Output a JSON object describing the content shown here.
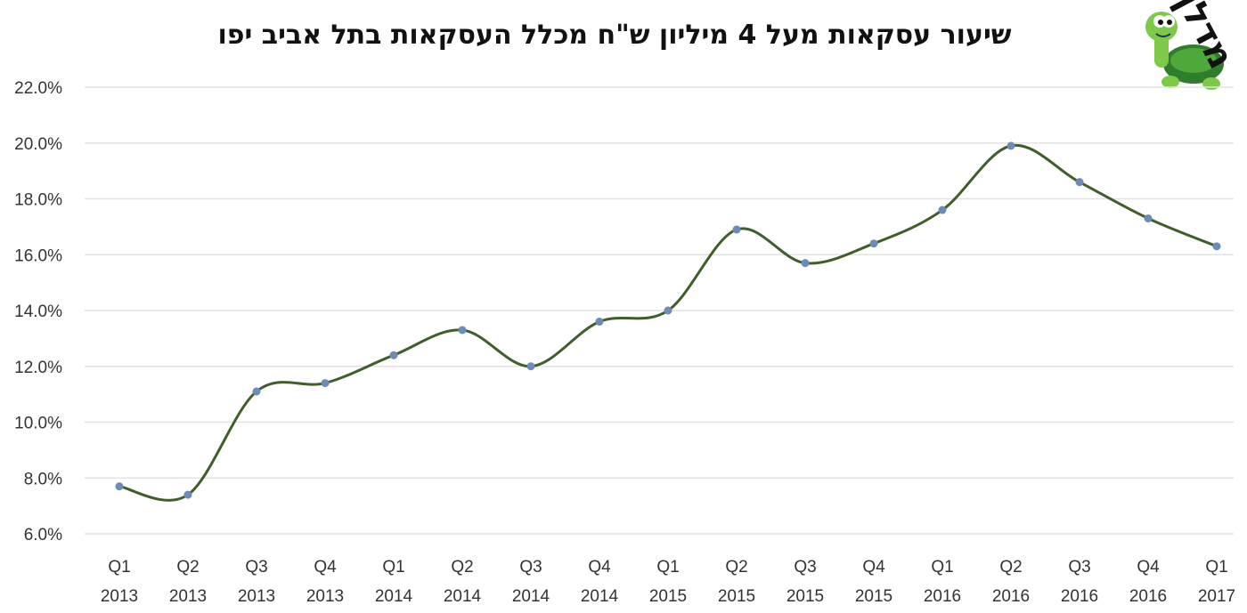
{
  "title": "שיעור עסקאות מעל 4 מיליון ש\"ח מכלל העסקאות בתל אביב יפו",
  "logo": {
    "text": "מדלן",
    "icon": "turtle-icon"
  },
  "chart_data": {
    "type": "line",
    "title": "שיעור עסקאות מעל 4 מיליון ש\"ח מכלל העסקאות בתל אביב יפו",
    "xlabel": "",
    "ylabel": "",
    "categories": [
      [
        "Q1",
        "2013"
      ],
      [
        "Q2",
        "2013"
      ],
      [
        "Q3",
        "2013"
      ],
      [
        "Q4",
        "2013"
      ],
      [
        "Q1",
        "2014"
      ],
      [
        "Q2",
        "2014"
      ],
      [
        "Q3",
        "2014"
      ],
      [
        "Q4",
        "2014"
      ],
      [
        "Q1",
        "2015"
      ],
      [
        "Q2",
        "2015"
      ],
      [
        "Q3",
        "2015"
      ],
      [
        "Q4",
        "2015"
      ],
      [
        "Q1",
        "2016"
      ],
      [
        "Q2",
        "2016"
      ],
      [
        "Q3",
        "2016"
      ],
      [
        "Q4",
        "2016"
      ],
      [
        "Q1",
        "2017"
      ]
    ],
    "values": [
      7.7,
      7.4,
      11.1,
      11.4,
      12.4,
      13.3,
      12.0,
      13.6,
      14.0,
      16.9,
      15.7,
      16.4,
      17.6,
      19.9,
      18.6,
      17.3,
      16.3
    ],
    "yticks": [
      "6.0%",
      "8.0%",
      "10.0%",
      "12.0%",
      "14.0%",
      "16.0%",
      "18.0%",
      "20.0%",
      "22.0%"
    ],
    "ylim": [
      6,
      22
    ],
    "ystep": 2,
    "grid": true,
    "smooth": true,
    "legend": "none",
    "colors": {
      "line": "#3f5e2a",
      "marker": "#6b8cb8",
      "grid": "#e3e3e3"
    }
  }
}
